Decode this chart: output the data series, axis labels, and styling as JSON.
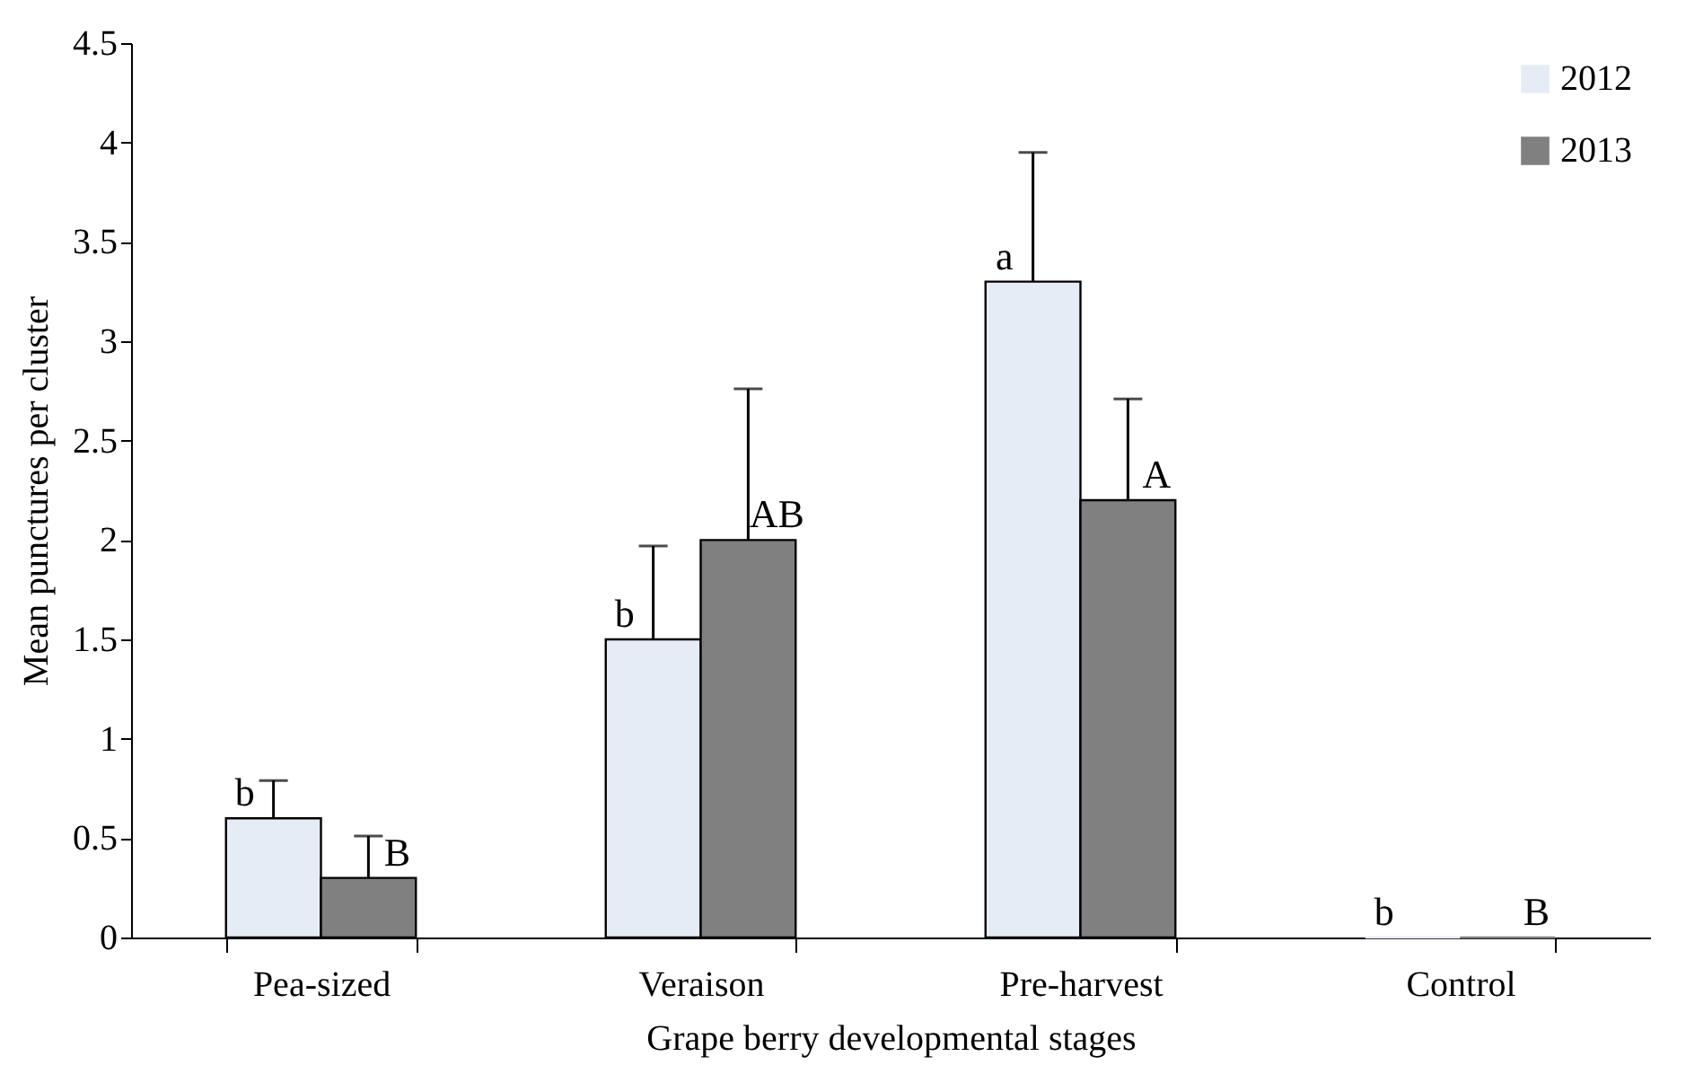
{
  "chart_data": {
    "type": "bar",
    "xlabel": "Grape berry developmental stages",
    "ylabel": "Mean punctures per cluster",
    "categories": [
      "Pea-sized",
      "Veraison",
      "Pre-harvest",
      "Control"
    ],
    "series": [
      {
        "name": "2012",
        "color": "#e6ecf6",
        "values": [
          0.6,
          1.5,
          3.3,
          0
        ],
        "errors": [
          [
            0.6,
            0.79
          ],
          [
            1.5,
            1.97
          ],
          [
            3.3,
            3.95
          ],
          null
        ],
        "value_labels": [
          "b",
          "b",
          "a",
          "b"
        ]
      },
      {
        "name": "2013",
        "color": "#808080",
        "values": [
          0.3,
          2.0,
          2.2,
          0
        ],
        "errors": [
          [
            0.3,
            0.51
          ],
          [
            2.0,
            2.76
          ],
          [
            2.2,
            2.71
          ],
          null
        ],
        "value_labels": [
          "B",
          "AB",
          "A",
          "B"
        ]
      }
    ],
    "ylim": [
      0,
      4.5
    ],
    "yticks": [
      0,
      0.5,
      1,
      1.5,
      2,
      2.5,
      3,
      3.5,
      4,
      4.5
    ],
    "grid": false,
    "legend": "top right"
  }
}
